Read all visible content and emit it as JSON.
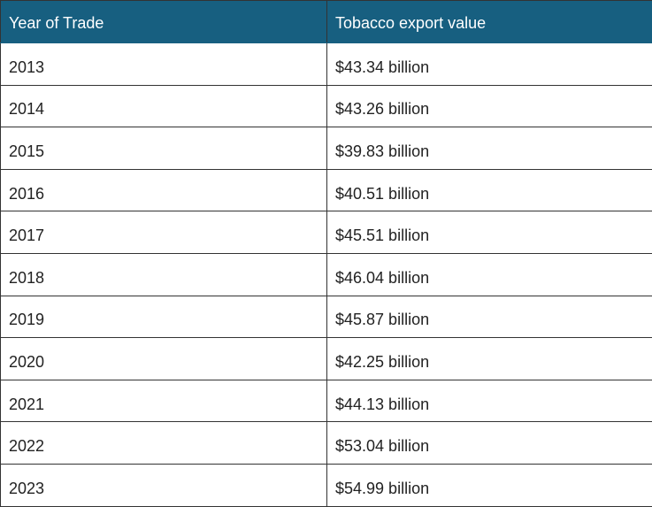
{
  "table": {
    "headers": [
      "Year of Trade",
      "Tobacco export value"
    ],
    "rows": [
      [
        "2013",
        "$43.34 billion"
      ],
      [
        "2014",
        "$43.26 billion"
      ],
      [
        "2015",
        "$39.83 billion"
      ],
      [
        "2016",
        "$40.51 billion"
      ],
      [
        "2017",
        "$45.51 billion"
      ],
      [
        "2018",
        "$46.04 billion"
      ],
      [
        "2019",
        "$45.87 billion"
      ],
      [
        "2020",
        "$42.25 billion"
      ],
      [
        "2021",
        "$44.13 billion"
      ],
      [
        "2022",
        "$53.04 billion"
      ],
      [
        "2023",
        "$54.99 billion"
      ]
    ],
    "header_color": "#175f80"
  }
}
